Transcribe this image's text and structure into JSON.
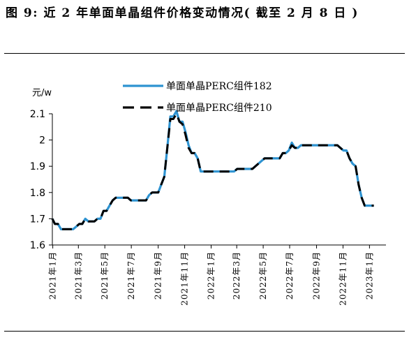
{
  "header": {
    "title": "图 9: 近 2 年单面单晶组件价格变动情况( 截至 2 月 8 日 )"
  },
  "chart_data": {
    "type": "line",
    "title": "",
    "xlabel": "",
    "ylabel": "元/w",
    "ylim": [
      1.6,
      2.1
    ],
    "yticks": [
      1.6,
      1.7,
      1.8,
      1.9,
      2,
      2.1
    ],
    "xlim": [
      "2020-12-31",
      "2023-02-08"
    ],
    "xticks": [
      {
        "date": "2021-01-01",
        "label": "2021年1月"
      },
      {
        "date": "2021-03-01",
        "label": "2021年3月"
      },
      {
        "date": "2021-05-01",
        "label": "2021年5月"
      },
      {
        "date": "2021-07-01",
        "label": "2021年7月"
      },
      {
        "date": "2021-09-01",
        "label": "2021年9月"
      },
      {
        "date": "2021-11-01",
        "label": "2021年11月"
      },
      {
        "date": "2022-01-01",
        "label": "2022年1月"
      },
      {
        "date": "2022-03-01",
        "label": "2022年3月"
      },
      {
        "date": "2022-05-01",
        "label": "2022年5月"
      },
      {
        "date": "2022-07-01",
        "label": "2022年7月"
      },
      {
        "date": "2022-09-01",
        "label": "2022年9月"
      },
      {
        "date": "2022-11-01",
        "label": "2022年11月"
      },
      {
        "date": "2023-01-01",
        "label": "2023年1月"
      }
    ],
    "legend_position": "top-center",
    "series": [
      {
        "name": "单面单晶PERC组件182",
        "color": "#2e93d1",
        "style": "solid",
        "points": [
          [
            "2020-12-31",
            1.7
          ],
          [
            "2021-01-06",
            1.68
          ],
          [
            "2021-01-13",
            1.68
          ],
          [
            "2021-01-20",
            1.66
          ],
          [
            "2021-01-27",
            1.66
          ],
          [
            "2021-02-03",
            1.66
          ],
          [
            "2021-02-10",
            1.66
          ],
          [
            "2021-02-17",
            1.66
          ],
          [
            "2021-02-24",
            1.67
          ],
          [
            "2021-03-03",
            1.68
          ],
          [
            "2021-03-10",
            1.68
          ],
          [
            "2021-03-17",
            1.7
          ],
          [
            "2021-03-24",
            1.69
          ],
          [
            "2021-03-31",
            1.69
          ],
          [
            "2021-04-07",
            1.69
          ],
          [
            "2021-04-14",
            1.7
          ],
          [
            "2021-04-21",
            1.7
          ],
          [
            "2021-04-28",
            1.73
          ],
          [
            "2021-05-05",
            1.73
          ],
          [
            "2021-05-12",
            1.75
          ],
          [
            "2021-05-19",
            1.77
          ],
          [
            "2021-05-26",
            1.78
          ],
          [
            "2021-06-02",
            1.78
          ],
          [
            "2021-06-09",
            1.78
          ],
          [
            "2021-06-16",
            1.78
          ],
          [
            "2021-06-23",
            1.78
          ],
          [
            "2021-06-30",
            1.77
          ],
          [
            "2021-07-07",
            1.77
          ],
          [
            "2021-07-14",
            1.77
          ],
          [
            "2021-07-21",
            1.77
          ],
          [
            "2021-07-28",
            1.77
          ],
          [
            "2021-08-04",
            1.77
          ],
          [
            "2021-08-11",
            1.79
          ],
          [
            "2021-08-18",
            1.8
          ],
          [
            "2021-08-25",
            1.8
          ],
          [
            "2021-09-01",
            1.8
          ],
          [
            "2021-09-08",
            1.83
          ],
          [
            "2021-09-15",
            1.86
          ],
          [
            "2021-09-22",
            1.97
          ],
          [
            "2021-09-29",
            2.09
          ],
          [
            "2021-10-06",
            2.09
          ],
          [
            "2021-10-13",
            2.11
          ],
          [
            "2021-10-20",
            2.07
          ],
          [
            "2021-10-27",
            2.07
          ],
          [
            "2021-11-03",
            2.03
          ],
          [
            "2021-11-10",
            1.98
          ],
          [
            "2021-11-17",
            1.95
          ],
          [
            "2021-11-24",
            1.95
          ],
          [
            "2021-12-01",
            1.93
          ],
          [
            "2021-12-08",
            1.88
          ],
          [
            "2021-12-15",
            1.88
          ],
          [
            "2021-12-22",
            1.88
          ],
          [
            "2021-12-29",
            1.88
          ],
          [
            "2022-01-05",
            1.88
          ],
          [
            "2022-01-12",
            1.88
          ],
          [
            "2022-01-19",
            1.88
          ],
          [
            "2022-01-26",
            1.88
          ],
          [
            "2022-02-02",
            1.88
          ],
          [
            "2022-02-09",
            1.88
          ],
          [
            "2022-02-16",
            1.88
          ],
          [
            "2022-02-23",
            1.88
          ],
          [
            "2022-03-02",
            1.89
          ],
          [
            "2022-03-09",
            1.89
          ],
          [
            "2022-03-16",
            1.89
          ],
          [
            "2022-03-23",
            1.89
          ],
          [
            "2022-03-30",
            1.89
          ],
          [
            "2022-04-06",
            1.89
          ],
          [
            "2022-04-13",
            1.9
          ],
          [
            "2022-04-20",
            1.91
          ],
          [
            "2022-04-27",
            1.92
          ],
          [
            "2022-05-04",
            1.93
          ],
          [
            "2022-05-11",
            1.93
          ],
          [
            "2022-05-18",
            1.93
          ],
          [
            "2022-05-25",
            1.93
          ],
          [
            "2022-06-01",
            1.93
          ],
          [
            "2022-06-08",
            1.93
          ],
          [
            "2022-06-15",
            1.95
          ],
          [
            "2022-06-22",
            1.95
          ],
          [
            "2022-06-29",
            1.96
          ],
          [
            "2022-07-06",
            1.99
          ],
          [
            "2022-07-13",
            1.97
          ],
          [
            "2022-07-20",
            1.97
          ],
          [
            "2022-07-27",
            1.98
          ],
          [
            "2022-08-03",
            1.98
          ],
          [
            "2022-08-10",
            1.98
          ],
          [
            "2022-08-17",
            1.98
          ],
          [
            "2022-08-24",
            1.98
          ],
          [
            "2022-08-31",
            1.98
          ],
          [
            "2022-09-07",
            1.98
          ],
          [
            "2022-09-14",
            1.98
          ],
          [
            "2022-09-21",
            1.98
          ],
          [
            "2022-09-28",
            1.98
          ],
          [
            "2022-10-05",
            1.98
          ],
          [
            "2022-10-12",
            1.98
          ],
          [
            "2022-10-19",
            1.98
          ],
          [
            "2022-10-26",
            1.97
          ],
          [
            "2022-11-02",
            1.96
          ],
          [
            "2022-11-09",
            1.96
          ],
          [
            "2022-11-16",
            1.93
          ],
          [
            "2022-11-23",
            1.91
          ],
          [
            "2022-11-30",
            1.9
          ],
          [
            "2022-12-07",
            1.83
          ],
          [
            "2022-12-14",
            1.78
          ],
          [
            "2022-12-21",
            1.75
          ],
          [
            "2022-12-28",
            1.75
          ],
          [
            "2023-01-04",
            1.75
          ],
          [
            "2023-01-11",
            1.75
          ]
        ]
      },
      {
        "name": "单面单晶PERC组件210",
        "color": "#000000",
        "style": "dashed",
        "points": [
          [
            "2020-12-31",
            1.7
          ],
          [
            "2021-01-06",
            1.68
          ],
          [
            "2021-01-13",
            1.68
          ],
          [
            "2021-01-20",
            1.66
          ],
          [
            "2021-01-27",
            1.66
          ],
          [
            "2021-02-03",
            1.66
          ],
          [
            "2021-02-10",
            1.66
          ],
          [
            "2021-02-17",
            1.66
          ],
          [
            "2021-02-24",
            1.67
          ],
          [
            "2021-03-03",
            1.68
          ],
          [
            "2021-03-10",
            1.68
          ],
          [
            "2021-03-17",
            1.7
          ],
          [
            "2021-03-24",
            1.69
          ],
          [
            "2021-03-31",
            1.69
          ],
          [
            "2021-04-07",
            1.69
          ],
          [
            "2021-04-14",
            1.7
          ],
          [
            "2021-04-21",
            1.7
          ],
          [
            "2021-04-28",
            1.73
          ],
          [
            "2021-05-05",
            1.73
          ],
          [
            "2021-05-12",
            1.75
          ],
          [
            "2021-05-19",
            1.77
          ],
          [
            "2021-05-26",
            1.78
          ],
          [
            "2021-06-02",
            1.78
          ],
          [
            "2021-06-09",
            1.78
          ],
          [
            "2021-06-16",
            1.78
          ],
          [
            "2021-06-23",
            1.78
          ],
          [
            "2021-06-30",
            1.77
          ],
          [
            "2021-07-07",
            1.77
          ],
          [
            "2021-07-14",
            1.77
          ],
          [
            "2021-07-21",
            1.77
          ],
          [
            "2021-07-28",
            1.77
          ],
          [
            "2021-08-04",
            1.77
          ],
          [
            "2021-08-11",
            1.79
          ],
          [
            "2021-08-18",
            1.8
          ],
          [
            "2021-08-25",
            1.8
          ],
          [
            "2021-09-01",
            1.8
          ],
          [
            "2021-09-08",
            1.83
          ],
          [
            "2021-09-15",
            1.86
          ],
          [
            "2021-09-22",
            1.97
          ],
          [
            "2021-09-29",
            2.08
          ],
          [
            "2021-10-06",
            2.08
          ],
          [
            "2021-10-13",
            2.1
          ],
          [
            "2021-10-20",
            2.07
          ],
          [
            "2021-10-27",
            2.06
          ],
          [
            "2021-11-03",
            2.02
          ],
          [
            "2021-11-10",
            1.97
          ],
          [
            "2021-11-17",
            1.95
          ],
          [
            "2021-11-24",
            1.95
          ],
          [
            "2021-12-01",
            1.93
          ],
          [
            "2021-12-08",
            1.88
          ],
          [
            "2021-12-15",
            1.88
          ],
          [
            "2021-12-22",
            1.88
          ],
          [
            "2021-12-29",
            1.88
          ],
          [
            "2022-01-05",
            1.88
          ],
          [
            "2022-01-12",
            1.88
          ],
          [
            "2022-01-19",
            1.88
          ],
          [
            "2022-01-26",
            1.88
          ],
          [
            "2022-02-02",
            1.88
          ],
          [
            "2022-02-09",
            1.88
          ],
          [
            "2022-02-16",
            1.88
          ],
          [
            "2022-02-23",
            1.88
          ],
          [
            "2022-03-02",
            1.89
          ],
          [
            "2022-03-09",
            1.89
          ],
          [
            "2022-03-16",
            1.89
          ],
          [
            "2022-03-23",
            1.89
          ],
          [
            "2022-03-30",
            1.89
          ],
          [
            "2022-04-06",
            1.89
          ],
          [
            "2022-04-13",
            1.9
          ],
          [
            "2022-04-20",
            1.91
          ],
          [
            "2022-04-27",
            1.92
          ],
          [
            "2022-05-04",
            1.93
          ],
          [
            "2022-05-11",
            1.93
          ],
          [
            "2022-05-18",
            1.93
          ],
          [
            "2022-05-25",
            1.93
          ],
          [
            "2022-06-01",
            1.93
          ],
          [
            "2022-06-08",
            1.93
          ],
          [
            "2022-06-15",
            1.95
          ],
          [
            "2022-06-22",
            1.95
          ],
          [
            "2022-06-29",
            1.96
          ],
          [
            "2022-07-06",
            1.98
          ],
          [
            "2022-07-13",
            1.97
          ],
          [
            "2022-07-20",
            1.97
          ],
          [
            "2022-07-27",
            1.98
          ],
          [
            "2022-08-03",
            1.98
          ],
          [
            "2022-08-10",
            1.98
          ],
          [
            "2022-08-17",
            1.98
          ],
          [
            "2022-08-24",
            1.98
          ],
          [
            "2022-08-31",
            1.98
          ],
          [
            "2022-09-07",
            1.98
          ],
          [
            "2022-09-14",
            1.98
          ],
          [
            "2022-09-21",
            1.98
          ],
          [
            "2022-09-28",
            1.98
          ],
          [
            "2022-10-05",
            1.98
          ],
          [
            "2022-10-12",
            1.98
          ],
          [
            "2022-10-19",
            1.98
          ],
          [
            "2022-10-26",
            1.97
          ],
          [
            "2022-11-02",
            1.96
          ],
          [
            "2022-11-09",
            1.96
          ],
          [
            "2022-11-16",
            1.93
          ],
          [
            "2022-11-23",
            1.91
          ],
          [
            "2022-11-30",
            1.9
          ],
          [
            "2022-12-07",
            1.83
          ],
          [
            "2022-12-14",
            1.78
          ],
          [
            "2022-12-21",
            1.75
          ],
          [
            "2022-12-28",
            1.75
          ],
          [
            "2023-01-04",
            1.75
          ],
          [
            "2023-01-11",
            1.75
          ]
        ]
      }
    ]
  }
}
